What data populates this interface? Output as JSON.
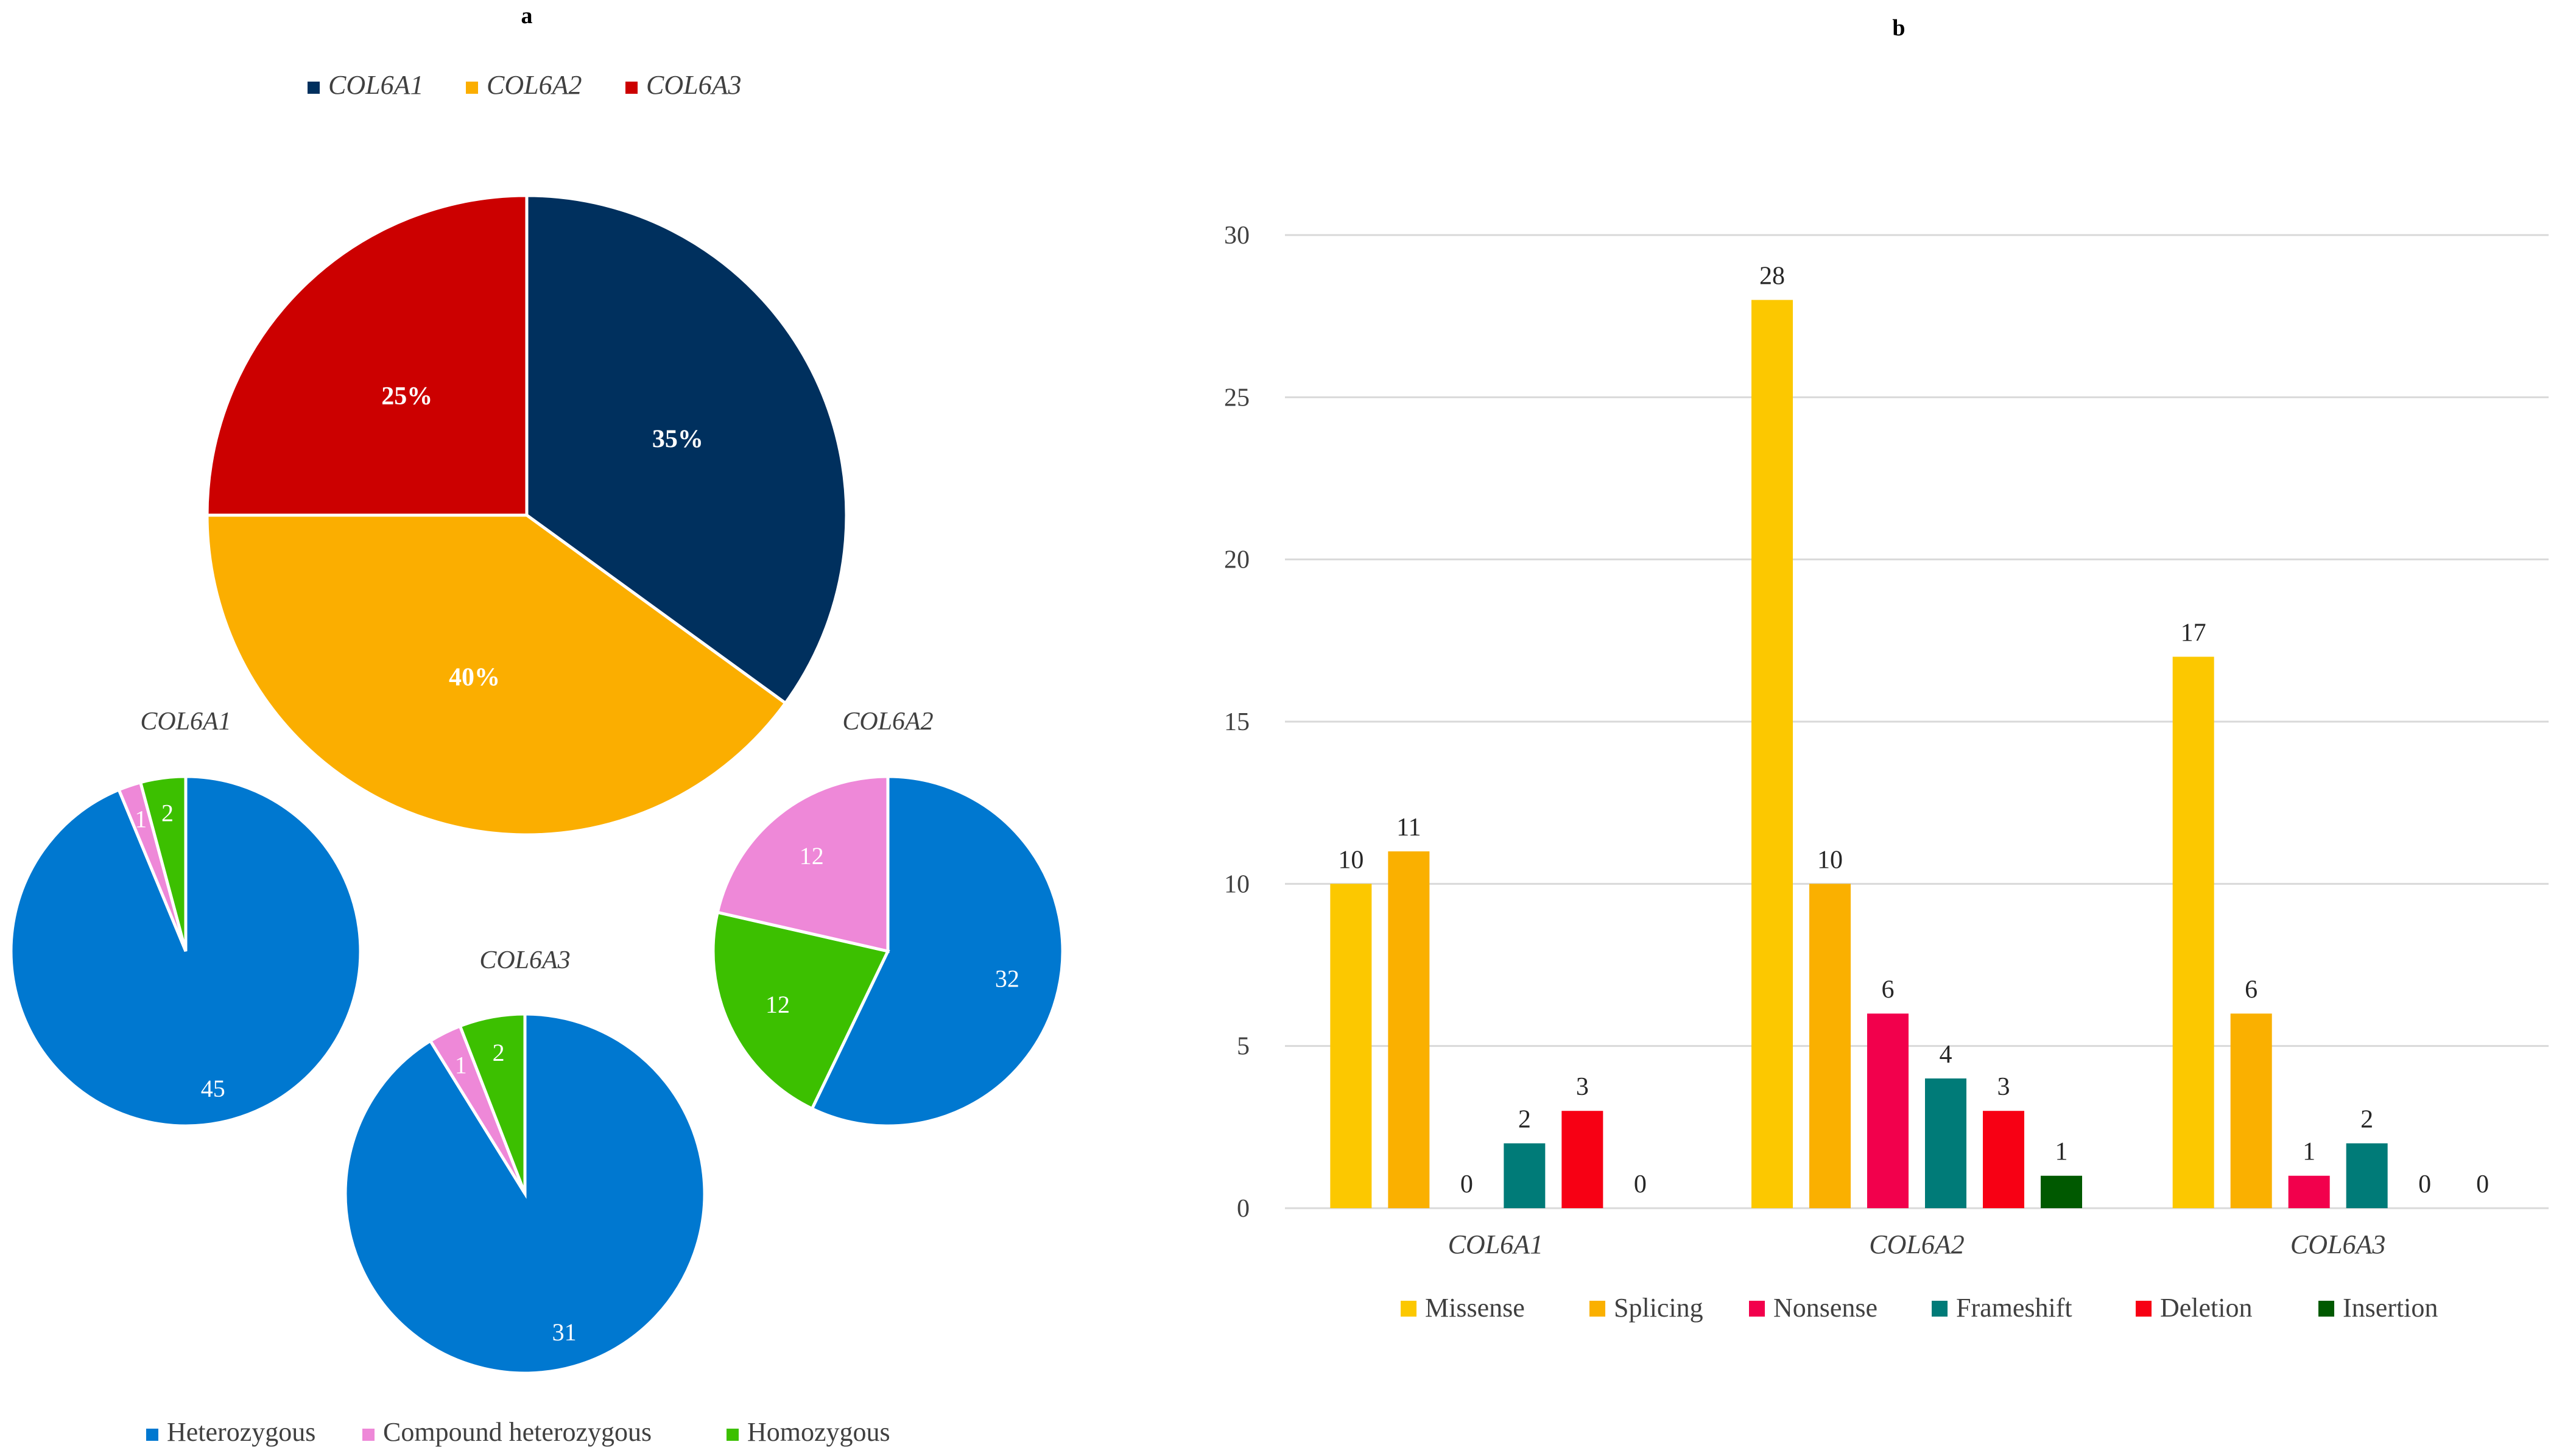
{
  "panels": {
    "a_label": "a",
    "b_label": "b"
  },
  "colors": {
    "col6a1": "#00305e",
    "col6a2": "#fbae00",
    "col6a3": "#cc0000",
    "heterozygous": "#0078d0",
    "compound": "#ee88d8",
    "homozygous": "#3cc000",
    "missense": "#fcc800",
    "splicing": "#fab000",
    "nonsense": "#f2004c",
    "frameshift": "#007b78",
    "deletion": "#f70014",
    "insertion": "#005900",
    "grid": "#d9d9d9",
    "axis_text": "#404040"
  },
  "chart_data": [
    {
      "type": "pie",
      "id": "gene-share",
      "title": "",
      "legend": [
        "COL6A1",
        "COL6A2",
        "COL6A3"
      ],
      "legend_placement": "top",
      "slices": [
        {
          "name": "COL6A1",
          "value": 35,
          "label": "35%",
          "color_key": "col6a1"
        },
        {
          "name": "COL6A2",
          "value": 40,
          "label": "40%",
          "color_key": "col6a2"
        },
        {
          "name": "COL6A3",
          "value": 25,
          "label": "25%",
          "color_key": "col6a3"
        }
      ]
    },
    {
      "type": "pie",
      "id": "zygosity-col6a1",
      "title": "COL6A1",
      "slices": [
        {
          "name": "Heterozygous",
          "value": 45,
          "label": "45",
          "color_key": "heterozygous"
        },
        {
          "name": "Compound heterozygous",
          "value": 1,
          "label": "1",
          "color_key": "compound"
        },
        {
          "name": "Homozygous",
          "value": 2,
          "label": "2",
          "color_key": "homozygous"
        }
      ]
    },
    {
      "type": "pie",
      "id": "zygosity-col6a2",
      "title": "COL6A2",
      "slices": [
        {
          "name": "Heterozygous",
          "value": 32,
          "label": "32",
          "color_key": "heterozygous"
        },
        {
          "name": "Homozygous",
          "value": 12,
          "label": "12",
          "color_key": "homozygous"
        },
        {
          "name": "Compound heterozygous",
          "value": 12,
          "label": "12",
          "color_key": "compound"
        }
      ]
    },
    {
      "type": "pie",
      "id": "zygosity-col6a3",
      "title": "COL6A3",
      "slices": [
        {
          "name": "Heterozygous",
          "value": 31,
          "label": "31",
          "color_key": "heterozygous"
        },
        {
          "name": "Compound heterozygous",
          "value": 1,
          "label": "1",
          "color_key": "compound"
        },
        {
          "name": "Homozygous",
          "value": 2,
          "label": "2",
          "color_key": "homozygous"
        }
      ]
    },
    {
      "type": "bar",
      "id": "variant-types",
      "title": "",
      "categories": [
        "COL6A1",
        "COL6A2",
        "COL6A3"
      ],
      "series": [
        {
          "name": "Missense",
          "values": [
            10,
            28,
            17
          ],
          "color_key": "missense"
        },
        {
          "name": "Splicing",
          "values": [
            11,
            10,
            6
          ],
          "color_key": "splicing"
        },
        {
          "name": "Nonsense",
          "values": [
            0,
            6,
            1
          ],
          "color_key": "nonsense"
        },
        {
          "name": "Frameshift",
          "values": [
            2,
            4,
            2
          ],
          "color_key": "frameshift"
        },
        {
          "name": "Deletion",
          "values": [
            3,
            3,
            0
          ],
          "color_key": "deletion"
        },
        {
          "name": "Insertion",
          "values": [
            0,
            1,
            0
          ],
          "color_key": "insertion"
        }
      ],
      "ylim": [
        0,
        30
      ],
      "yticks": [
        0,
        5,
        10,
        15,
        20,
        25,
        30
      ],
      "grid": true,
      "legend_placement": "bottom"
    }
  ],
  "zygosity_legend": [
    "Heterozygous",
    "Compound heterozygous",
    "Homozygous"
  ]
}
